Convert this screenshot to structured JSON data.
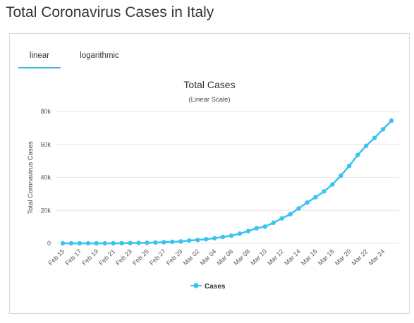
{
  "page": {
    "title": "Total Coronavirus Cases in Italy"
  },
  "tabs": [
    {
      "label": "linear",
      "active": true
    },
    {
      "label": "logarithmic",
      "active": false
    }
  ],
  "colors": {
    "series": "#37c4f0",
    "tab_underline": "#2fb7e8",
    "grid": "#e6e6e6"
  },
  "chart_data": {
    "type": "line",
    "title": "Total Cases",
    "subtitle": "(Linear Scale)",
    "ylabel": "Total Coronavirus Cases",
    "xlabel": "",
    "ylim": [
      0,
      80000
    ],
    "yticks": [
      0,
      20000,
      40000,
      60000,
      80000
    ],
    "ytick_labels": [
      "0",
      "20k",
      "40k",
      "60k",
      "80k"
    ],
    "xtick_labels": [
      "Feb 15",
      "Feb 17",
      "Feb 19",
      "Feb 21",
      "Feb 23",
      "Feb 25",
      "Feb 27",
      "Feb 29",
      "Mar 02",
      "Mar 04",
      "Mar 06",
      "Mar 08",
      "Mar 10",
      "Mar 12",
      "Mar 14",
      "Mar 16",
      "Mar 18",
      "Mar 20",
      "Mar 22",
      "Mar 24"
    ],
    "categories": [
      "Feb 15",
      "Feb 16",
      "Feb 17",
      "Feb 18",
      "Feb 19",
      "Feb 20",
      "Feb 21",
      "Feb 22",
      "Feb 23",
      "Feb 24",
      "Feb 25",
      "Feb 26",
      "Feb 27",
      "Feb 28",
      "Feb 29",
      "Mar 01",
      "Mar 02",
      "Mar 03",
      "Mar 04",
      "Mar 05",
      "Mar 06",
      "Mar 07",
      "Mar 08",
      "Mar 09",
      "Mar 10",
      "Mar 11",
      "Mar 12",
      "Mar 13",
      "Mar 14",
      "Mar 15",
      "Mar 16",
      "Mar 17",
      "Mar 18",
      "Mar 19",
      "Mar 20",
      "Mar 21",
      "Mar 22",
      "Mar 23",
      "Mar 24",
      "Mar 25"
    ],
    "series": [
      {
        "name": "Cases",
        "values": [
          3,
          3,
          3,
          3,
          3,
          3,
          20,
          79,
          157,
          229,
          323,
          470,
          655,
          889,
          1128,
          1694,
          2036,
          2502,
          3089,
          3858,
          4636,
          5883,
          7375,
          9172,
          10149,
          12462,
          15113,
          17660,
          21157,
          24747,
          27980,
          31506,
          35713,
          41035,
          47021,
          53578,
          59138,
          63927,
          69176,
          74386
        ]
      }
    ],
    "grid": true,
    "legend": "bottom-center"
  }
}
